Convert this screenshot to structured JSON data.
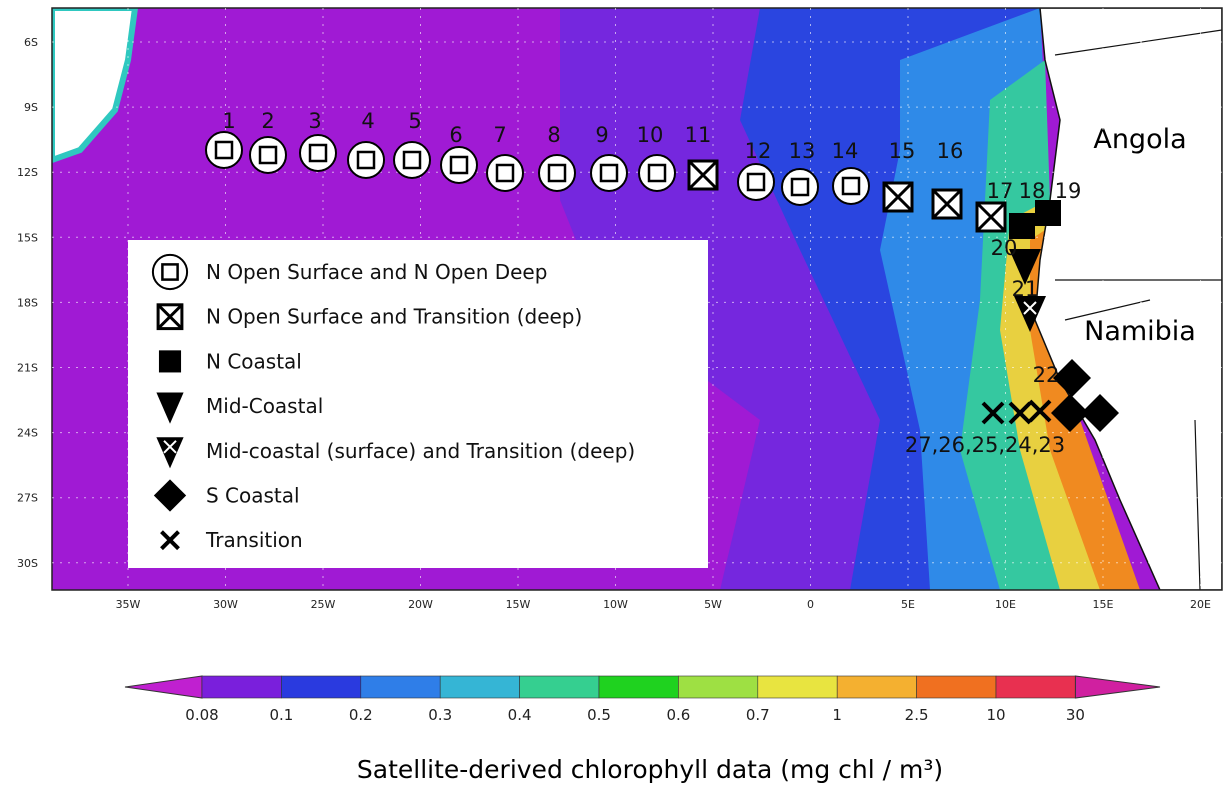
{
  "map": {
    "lat_ticks": [
      "6S",
      "9S",
      "12S",
      "15S",
      "18S",
      "21S",
      "24S",
      "27S",
      "30S"
    ],
    "lon_ticks": [
      "35W",
      "30W",
      "25W",
      "20W",
      "15W",
      "10W",
      "5W",
      "0",
      "5E",
      "10E",
      "15E",
      "20E"
    ],
    "countries": [
      "Angola",
      "Namibia"
    ],
    "stations": [
      "1",
      "2",
      "3",
      "4",
      "5",
      "6",
      "7",
      "8",
      "9",
      "10",
      "11",
      "12",
      "13",
      "14",
      "15",
      "16",
      "17",
      "18",
      "19",
      "20",
      "21",
      "22",
      "27,26,25,24,23"
    ]
  },
  "legend": [
    "N Open Surface and N Open Deep",
    "N Open Surface and Transition (deep)",
    "N Coastal",
    "Mid-Coastal",
    "Mid-coastal (surface) and Transition (deep)",
    "S Coastal",
    "Transition"
  ],
  "colorbar": {
    "labels": [
      "0.08",
      "0.1",
      "0.2",
      "0.3",
      "0.4",
      "0.5",
      "0.6",
      "0.7",
      "1",
      "2.5",
      "10",
      "30"
    ],
    "caption": "Satellite-derived chlorophyll data (mg chl / m³)"
  }
}
